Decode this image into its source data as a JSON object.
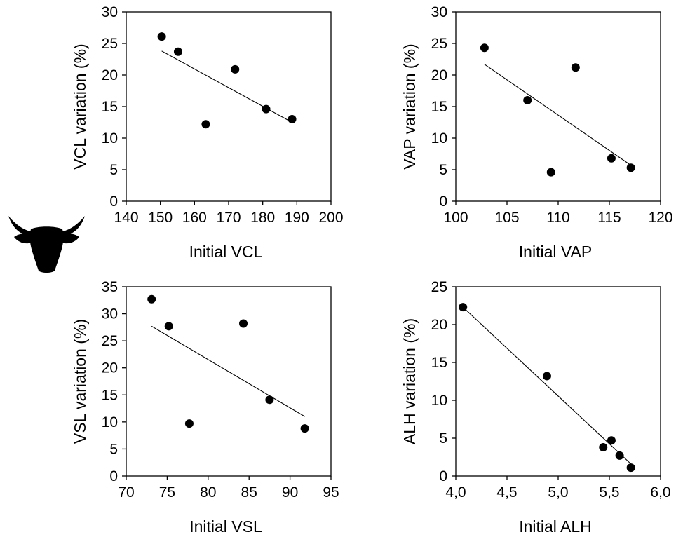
{
  "chart_data": [
    {
      "type": "scatter",
      "id": "vcl",
      "xlabel": "Initial VCL",
      "ylabel": "VCL variation (%)",
      "xlim": [
        140,
        200
      ],
      "ylim": [
        0,
        30
      ],
      "xticks": [
        140,
        150,
        160,
        170,
        180,
        190,
        200
      ],
      "yticks": [
        0,
        5,
        10,
        15,
        20,
        25,
        30
      ],
      "xtick_labels": [
        "140",
        "150",
        "160",
        "170",
        "180",
        "190",
        "200"
      ],
      "ytick_labels": [
        "0",
        "5",
        "10",
        "15",
        "20",
        "25",
        "30"
      ],
      "points": [
        {
          "x": 150.4,
          "y": 26.1
        },
        {
          "x": 155.2,
          "y": 23.7
        },
        {
          "x": 163.3,
          "y": 12.2
        },
        {
          "x": 171.9,
          "y": 20.9
        },
        {
          "x": 181.0,
          "y": 14.6
        },
        {
          "x": 188.6,
          "y": 13.0
        }
      ],
      "fit_line": {
        "x": [
          150.4,
          188.6
        ],
        "y": [
          23.8,
          12.5
        ]
      },
      "grid": false
    },
    {
      "type": "scatter",
      "id": "vap",
      "xlabel": "Initial VAP",
      "ylabel": "VAP variation (%)",
      "xlim": [
        100,
        120
      ],
      "ylim": [
        0,
        30
      ],
      "xticks": [
        100,
        105,
        110,
        115,
        120
      ],
      "yticks": [
        0,
        5,
        10,
        15,
        20,
        25,
        30
      ],
      "xtick_labels": [
        "100",
        "105",
        "110",
        "115",
        "120"
      ],
      "ytick_labels": [
        "0",
        "5",
        "10",
        "15",
        "20",
        "25",
        "30"
      ],
      "points": [
        {
          "x": 102.8,
          "y": 24.3
        },
        {
          "x": 107.0,
          "y": 16.0
        },
        {
          "x": 109.3,
          "y": 4.6
        },
        {
          "x": 111.7,
          "y": 21.2
        },
        {
          "x": 115.2,
          "y": 6.8
        },
        {
          "x": 117.1,
          "y": 5.3
        }
      ],
      "fit_line": {
        "x": [
          102.8,
          117.1
        ],
        "y": [
          21.7,
          5.7
        ]
      },
      "grid": false
    },
    {
      "type": "scatter",
      "id": "vsl",
      "xlabel": "Initial VSL",
      "ylabel": "VSL variation (%)",
      "xlim": [
        70,
        95
      ],
      "ylim": [
        0,
        35
      ],
      "xticks": [
        70,
        75,
        80,
        85,
        90,
        95
      ],
      "yticks": [
        0,
        5,
        10,
        15,
        20,
        25,
        30,
        35
      ],
      "xtick_labels": [
        "70",
        "75",
        "80",
        "85",
        "90",
        "95"
      ],
      "ytick_labels": [
        "0",
        "5",
        "10",
        "15",
        "20",
        "25",
        "30",
        "35"
      ],
      "points": [
        {
          "x": 73.1,
          "y": 32.7
        },
        {
          "x": 75.2,
          "y": 27.7
        },
        {
          "x": 77.7,
          "y": 9.7
        },
        {
          "x": 84.3,
          "y": 28.2
        },
        {
          "x": 87.5,
          "y": 14.1
        },
        {
          "x": 91.8,
          "y": 8.8
        }
      ],
      "fit_line": {
        "x": [
          73.1,
          91.8
        ],
        "y": [
          27.7,
          11.0
        ]
      },
      "grid": false
    },
    {
      "type": "scatter",
      "id": "alh",
      "xlabel": "Initial ALH",
      "ylabel": "ALH variation (%)",
      "xlim": [
        4.0,
        6.0
      ],
      "ylim": [
        0,
        25
      ],
      "xticks": [
        4.0,
        4.5,
        5.0,
        5.5,
        6.0
      ],
      "yticks": [
        0,
        5,
        10,
        15,
        20,
        25
      ],
      "xtick_labels": [
        "4,0",
        "4,5",
        "5,0",
        "5,5",
        "6,0"
      ],
      "ytick_labels": [
        "0",
        "5",
        "10",
        "15",
        "20",
        "25"
      ],
      "points": [
        {
          "x": 4.07,
          "y": 22.3
        },
        {
          "x": 4.89,
          "y": 13.2
        },
        {
          "x": 5.44,
          "y": 3.8
        },
        {
          "x": 5.52,
          "y": 4.7
        },
        {
          "x": 5.6,
          "y": 2.7
        },
        {
          "x": 5.71,
          "y": 1.1
        }
      ],
      "fit_line": {
        "x": [
          4.07,
          5.71
        ],
        "y": [
          22.3,
          1.6
        ]
      },
      "grid": false
    }
  ],
  "icons": {
    "species_icon": "bull-head-icon"
  },
  "colors": {
    "points": "#000000",
    "axes": "#000000",
    "background": "#ffffff"
  }
}
